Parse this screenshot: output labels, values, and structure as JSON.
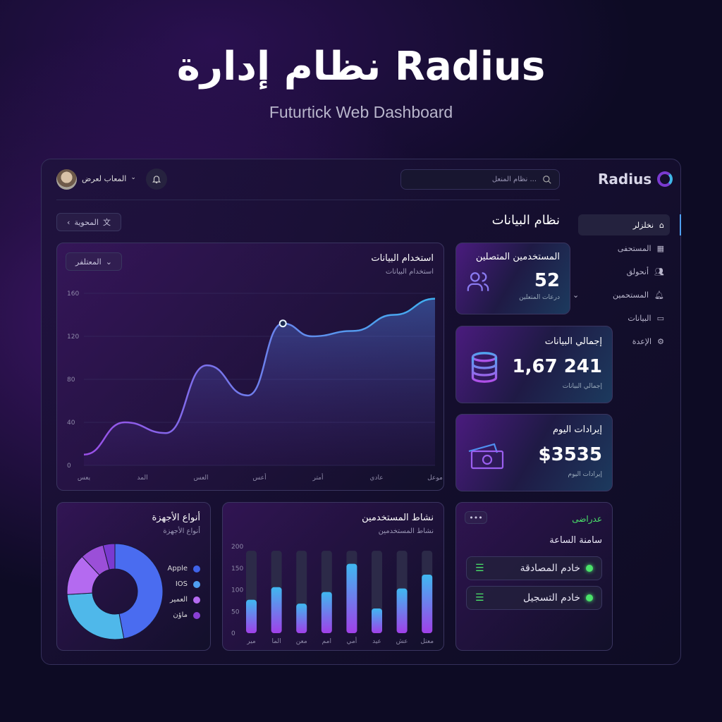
{
  "hero": {
    "title": "نظام إدارة Radius",
    "subtitle": "Futurtick Web Dashboard"
  },
  "header": {
    "user_name": "المعاب لعرض",
    "search_placeholder": "نظام المنعل ...",
    "brand": "Radius",
    "notifications_icon": "bell-icon"
  },
  "toolbar": {
    "breadcrumb_label": "المحوية",
    "filter_label": "المعتلفر"
  },
  "page": {
    "title": "نظام البيانات"
  },
  "sidebar": {
    "items": [
      {
        "label": "نخلزلر",
        "icon": "home-icon",
        "active": true
      },
      {
        "label": "المستحفى",
        "icon": "grid-icon"
      },
      {
        "label": "أنحولق",
        "icon": "users-icon"
      },
      {
        "label": "المستحمين",
        "icon": "bell-icon",
        "expandable": true
      },
      {
        "label": "البيانات",
        "icon": "wallet-icon"
      },
      {
        "label": "الإعدة",
        "icon": "gear-icon"
      }
    ]
  },
  "stats": [
    {
      "title": "المستخدمين المتصلين",
      "value": "52",
      "caption": "درعات المتعلين",
      "icon": "users-icon"
    },
    {
      "title": "إجمالي البيانات",
      "value": "1,67 241",
      "caption": "إجمالي البيانات",
      "icon": "database-icon"
    },
    {
      "title": "إيرادات اليوم",
      "value": "$3535",
      "caption": "إيرادات اليوم",
      "icon": "money-icon"
    }
  ],
  "status": {
    "state": "عدراضى",
    "title": "سامنة الساعة",
    "servers": [
      {
        "name": "خادم المصادقة",
        "status": "online"
      },
      {
        "name": "خادم التسجيل",
        "status": "online"
      }
    ],
    "colors": {
      "online": "#4ae36a"
    }
  },
  "chart_data": [
    {
      "type": "area",
      "title": "استخدام البيانات",
      "subtitle": "استخدام البيانات",
      "categories": [
        "يعس",
        "المد",
        "العس",
        "أعس",
        "أمتر",
        "عادي",
        "موعل"
      ],
      "x": [
        0,
        0.7,
        1.4,
        2.1,
        2.8,
        3.4,
        3.9,
        4.6,
        5.3,
        6
      ],
      "values": [
        10,
        40,
        30,
        93,
        65,
        132,
        120,
        125,
        140,
        155
      ],
      "highlight_index": 5,
      "ylim": [
        0,
        160
      ],
      "yticks": [
        0,
        40,
        80,
        120,
        160
      ],
      "grid": true
    },
    {
      "type": "bar",
      "title": "نشاط المستخدمين",
      "subtitle": "نشاط المستخدمين",
      "categories": [
        "مير",
        "الما",
        "معن",
        "امم",
        "أمي",
        "عيد",
        "عش",
        "معتل"
      ],
      "values": [
        77,
        106,
        68,
        95,
        160,
        57,
        103,
        135
      ],
      "ylim": [
        0,
        200
      ],
      "yticks": [
        0,
        50,
        100,
        150,
        200
      ]
    },
    {
      "type": "pie",
      "title": "أنواع الأجهزة",
      "subtitle": "أنواع الأجهزة",
      "values": [
        47,
        27,
        14,
        8,
        4
      ],
      "colors": [
        "#4a6cf0",
        "#4fb8ea",
        "#b46af0",
        "#9b4fd8",
        "#7a3ad0"
      ],
      "legend": [
        {
          "label": "Apple",
          "color": "#3f63e8"
        },
        {
          "label": "IOS",
          "color": "#4f9ff0"
        },
        {
          "label": "العمير",
          "color": "#b46af0"
        },
        {
          "label": "ماؤن",
          "color": "#8a3fd6"
        }
      ]
    }
  ]
}
